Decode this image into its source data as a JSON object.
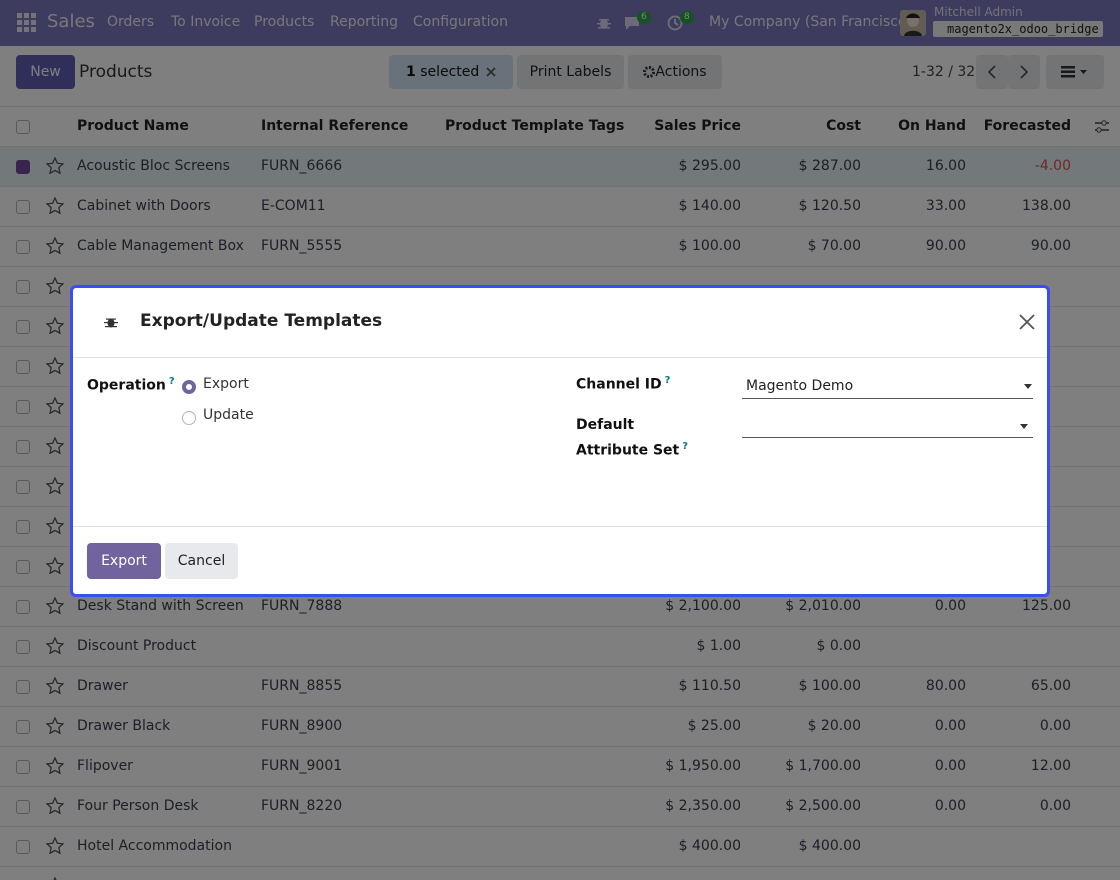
{
  "navbar": {
    "app": "Sales",
    "menu": [
      "Orders",
      "To Invoice",
      "Products",
      "Reporting",
      "Configuration"
    ],
    "messages_badge": "6",
    "activities_badge": "8",
    "company": "My Company (San Francisco)",
    "user": "Mitchell Admin",
    "database": "magento2x_odoo_bridge"
  },
  "control_panel": {
    "new_button": "New",
    "breadcrumb": "Products",
    "selection_count": "1",
    "selection_label": "selected",
    "print_labels": "Print Labels",
    "actions": "Actions",
    "pager": "1-32 / 32"
  },
  "table": {
    "headers": [
      "Product Name",
      "Internal Reference",
      "Product Template Tags",
      "Sales Price",
      "Cost",
      "On Hand",
      "Forecasted"
    ],
    "rows": [
      {
        "name": "Acoustic Bloc Screens",
        "reference": "FURN_6666",
        "sales_price": "$ 295.00",
        "cost": "$ 287.00",
        "on_hand": "16.00",
        "forecasted": "-4.00",
        "selected": true
      },
      {
        "name": "Cabinet with Doors",
        "reference": "E-COM11",
        "sales_price": "$ 140.00",
        "cost": "$ 120.50",
        "on_hand": "33.00",
        "forecasted": "138.00",
        "selected": false
      },
      {
        "name": "Cable Management Box",
        "reference": "FURN_5555",
        "sales_price": "$ 100.00",
        "cost": "$ 70.00",
        "on_hand": "90.00",
        "forecasted": "90.00",
        "selected": false
      },
      {
        "name": "Desk Stand with Screen",
        "reference": "FURN_7888",
        "sales_price": "$ 2,100.00",
        "cost": "$ 2,010.00",
        "on_hand": "0.00",
        "forecasted": "125.00",
        "selected": false
      },
      {
        "name": "Discount Product",
        "reference": null,
        "sales_price": "$ 1.00",
        "cost": "$ 0.00",
        "on_hand": null,
        "forecasted": null,
        "selected": false
      },
      {
        "name": "Drawer",
        "reference": "FURN_8855",
        "sales_price": "$ 110.50",
        "cost": "$ 100.00",
        "on_hand": "80.00",
        "forecasted": "65.00",
        "selected": false
      },
      {
        "name": "Drawer Black",
        "reference": "FURN_8900",
        "sales_price": "$ 25.00",
        "cost": "$ 20.00",
        "on_hand": "0.00",
        "forecasted": "0.00",
        "selected": false
      },
      {
        "name": "Flipover",
        "reference": "FURN_9001",
        "sales_price": "$ 1,950.00",
        "cost": "$ 1,700.00",
        "on_hand": "0.00",
        "forecasted": "12.00",
        "selected": false
      },
      {
        "name": "Four Person Desk",
        "reference": "FURN_8220",
        "sales_price": "$ 2,350.00",
        "cost": "$ 2,500.00",
        "on_hand": "0.00",
        "forecasted": "0.00",
        "selected": false
      },
      {
        "name": "Hotel Accommodation",
        "reference": null,
        "sales_price": "$ 400.00",
        "cost": "$ 400.00",
        "on_hand": null,
        "forecasted": null,
        "selected": false
      }
    ]
  },
  "modal": {
    "title": "Export/Update Templates",
    "help": "?",
    "operation_label": "Operation",
    "options": [
      "Export",
      "Update"
    ],
    "channel_label": "Channel ID",
    "channel_value": "Magento Demo",
    "attribute_label": "Default Attribute Set",
    "primary_button": "Export",
    "cancel_button": "Cancel"
  }
}
